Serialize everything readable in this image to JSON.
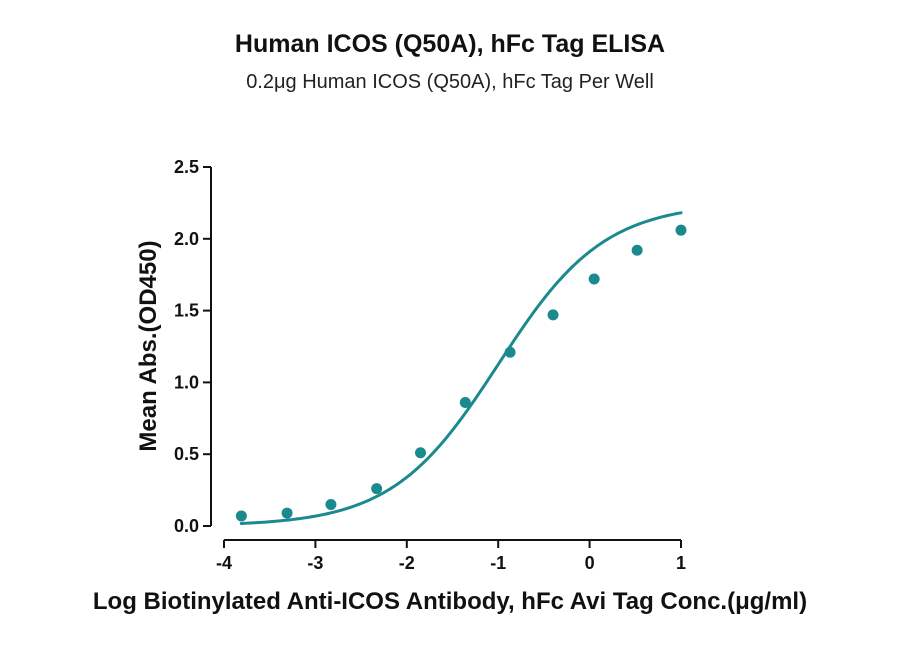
{
  "chart_data": {
    "type": "scatter",
    "title": "Human ICOS (Q50A), hFc Tag ELISA",
    "subtitle": "0.2μg Human ICOS (Q50A), hFc Tag Per Well",
    "xlabel": "Log Biotinylated Anti-ICOS Antibody, hFc Avi Tag Conc.(μg/ml)",
    "ylabel": "Mean Abs.(OD450)",
    "xlim": [
      -4,
      1
    ],
    "ylim": [
      0,
      2.5
    ],
    "x_ticks": [
      -4,
      -3,
      -2,
      -1,
      0,
      1
    ],
    "x_tick_labels": [
      "-4",
      "-3",
      "-2",
      "-1",
      "0",
      "1"
    ],
    "y_ticks": [
      0.0,
      0.5,
      1.0,
      1.5,
      2.0,
      2.5
    ],
    "y_tick_labels": [
      "0.0",
      "0.5",
      "1.0",
      "1.5",
      "2.0",
      "2.5"
    ],
    "grid": false,
    "color": "#1a8a8f",
    "points": [
      {
        "x": -3.81,
        "y": 0.07
      },
      {
        "x": -3.31,
        "y": 0.09
      },
      {
        "x": -2.83,
        "y": 0.15
      },
      {
        "x": -2.33,
        "y": 0.26
      },
      {
        "x": -1.85,
        "y": 0.51
      },
      {
        "x": -1.36,
        "y": 0.86
      },
      {
        "x": -0.87,
        "y": 1.21
      },
      {
        "x": -0.4,
        "y": 1.47
      },
      {
        "x": 0.05,
        "y": 1.72
      },
      {
        "x": 0.52,
        "y": 1.92
      },
      {
        "x": 1.0,
        "y": 2.06
      }
    ],
    "fit_curve": {
      "model": "4PL",
      "bottom": 0.0,
      "top": 2.25,
      "log_ec50": -1.0,
      "hill_slope": 0.75,
      "x_range": [
        -3.81,
        1.0
      ]
    }
  }
}
